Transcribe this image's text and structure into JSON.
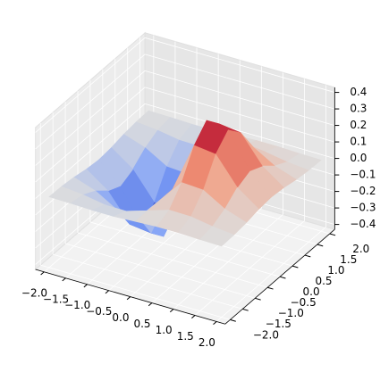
{
  "chart_data": {
    "type": "surface3d",
    "colormap": "coolwarm",
    "x": [
      -2,
      -1.5,
      -1,
      -0.5,
      0,
      0.5,
      1,
      1.5,
      2
    ],
    "y": [
      -2,
      -1.5,
      -1,
      -0.5,
      0,
      0.5,
      1,
      1.5,
      2
    ],
    "z": [
      [
        -0.001,
        -0.003,
        -0.007,
        -0.007,
        0,
        0.007,
        0.007,
        0.003,
        0.001
      ],
      [
        -0.004,
        -0.017,
        -0.039,
        -0.041,
        0,
        0.041,
        0.039,
        0.017,
        0.004
      ],
      [
        -0.013,
        -0.058,
        -0.135,
        -0.143,
        0,
        0.143,
        0.135,
        0.058,
        0.013
      ],
      [
        -0.029,
        -0.123,
        -0.287,
        -0.303,
        0,
        0.303,
        0.287,
        0.123,
        0.029
      ],
      [
        -0.037,
        -0.158,
        -0.368,
        -0.389,
        0,
        0.389,
        0.368,
        0.158,
        0.037
      ],
      [
        -0.029,
        -0.123,
        -0.287,
        -0.303,
        0,
        0.303,
        0.287,
        0.123,
        0.029
      ],
      [
        -0.013,
        -0.058,
        -0.135,
        -0.143,
        0,
        0.143,
        0.135,
        0.058,
        0.013
      ],
      [
        -0.004,
        -0.017,
        -0.039,
        -0.041,
        0,
        0.041,
        0.039,
        0.017,
        0.004
      ],
      [
        -0.001,
        -0.003,
        -0.007,
        -0.007,
        0,
        0.007,
        0.007,
        0.003,
        0.001
      ]
    ],
    "xlim": [
      -2.2,
      2.2
    ],
    "ylim": [
      -2.2,
      2.2
    ],
    "zlim": [
      -0.43,
      0.43
    ],
    "xticks": [
      {
        "value": -2,
        "label": "−2.0"
      },
      {
        "value": -1.5,
        "label": "−1.5"
      },
      {
        "value": -1,
        "label": "−1.0"
      },
      {
        "value": -0.5,
        "label": "−0.5"
      },
      {
        "value": 0,
        "label": "0.0"
      },
      {
        "value": 0.5,
        "label": "0.5"
      },
      {
        "value": 1,
        "label": "1.0"
      },
      {
        "value": 1.5,
        "label": "1.5"
      },
      {
        "value": 2,
        "label": "2.0"
      }
    ],
    "yticks": [
      {
        "value": -2,
        "label": "−2.0"
      },
      {
        "value": -1.5,
        "label": "−1.5"
      },
      {
        "value": -1,
        "label": "−1.0"
      },
      {
        "value": -0.5,
        "label": "−0.5"
      },
      {
        "value": 0,
        "label": "0.0"
      },
      {
        "value": 0.5,
        "label": "0.5"
      },
      {
        "value": 1,
        "label": "1.0"
      },
      {
        "value": 1.5,
        "label": "1.5"
      },
      {
        "value": 2,
        "label": "2.0"
      }
    ],
    "zticks": [
      {
        "value": -0.4,
        "label": "−0.4"
      },
      {
        "value": -0.3,
        "label": "−0.3"
      },
      {
        "value": -0.2,
        "label": "−0.2"
      },
      {
        "value": -0.1,
        "label": "−0.1"
      },
      {
        "value": 0,
        "label": "0.0"
      },
      {
        "value": 0.1,
        "label": "0.1"
      },
      {
        "value": 0.2,
        "label": "0.2"
      },
      {
        "value": 0.3,
        "label": "0.3"
      },
      {
        "value": 0.4,
        "label": "0.4"
      }
    ],
    "grid": true
  }
}
